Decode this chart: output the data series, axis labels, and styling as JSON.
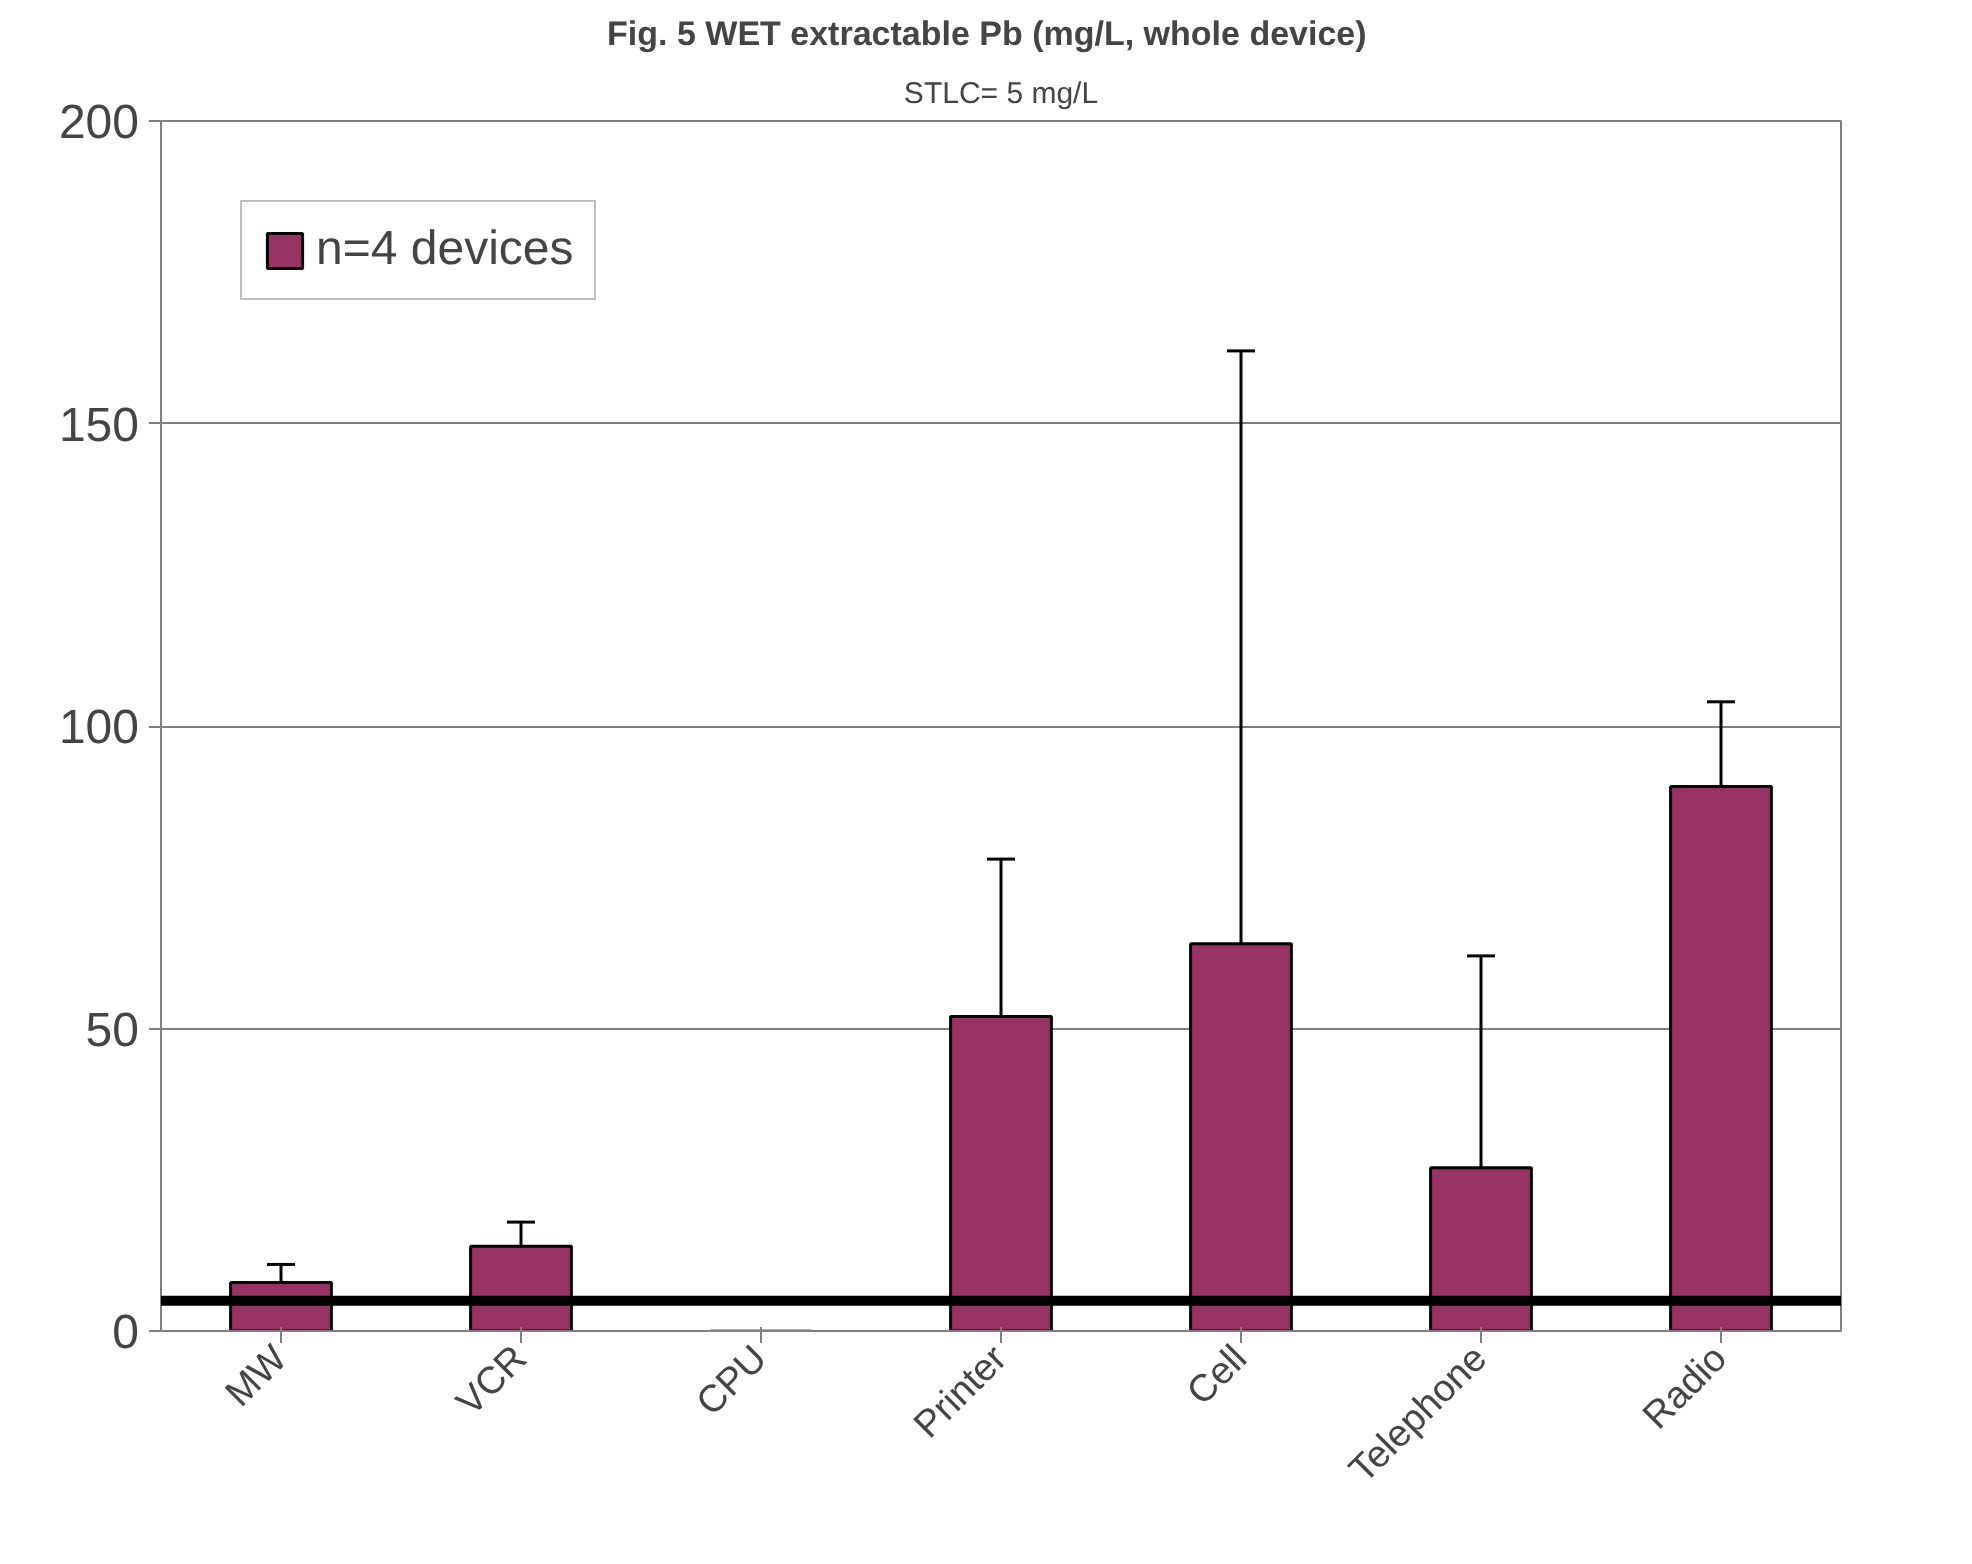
{
  "chart_data": {
    "type": "bar",
    "title": "Fig. 5  WET extractable Pb   (mg/L, whole device)",
    "subtitle": "STLC= 5 mg/L",
    "categories": [
      "MW",
      "VCR",
      "CPU",
      "Printer",
      "Cell",
      "Telephone",
      "Radio"
    ],
    "series": [
      {
        "name": "n=4 devices",
        "color": "#993366",
        "values": [
          8,
          14,
          0,
          52,
          64,
          27,
          90
        ],
        "errors": [
          [
            8,
            11
          ],
          [
            14,
            18
          ],
          null,
          [
            52,
            78
          ],
          [
            64,
            162
          ],
          [
            27,
            62
          ],
          [
            90,
            104
          ]
        ]
      }
    ],
    "ylim": [
      0,
      200
    ],
    "yticks": [
      0,
      50,
      100,
      150,
      200
    ],
    "grid": "y",
    "legend": "top left",
    "ref_lines": [
      {
        "axis": "y",
        "value": 5,
        "color": "#000000"
      }
    ]
  }
}
